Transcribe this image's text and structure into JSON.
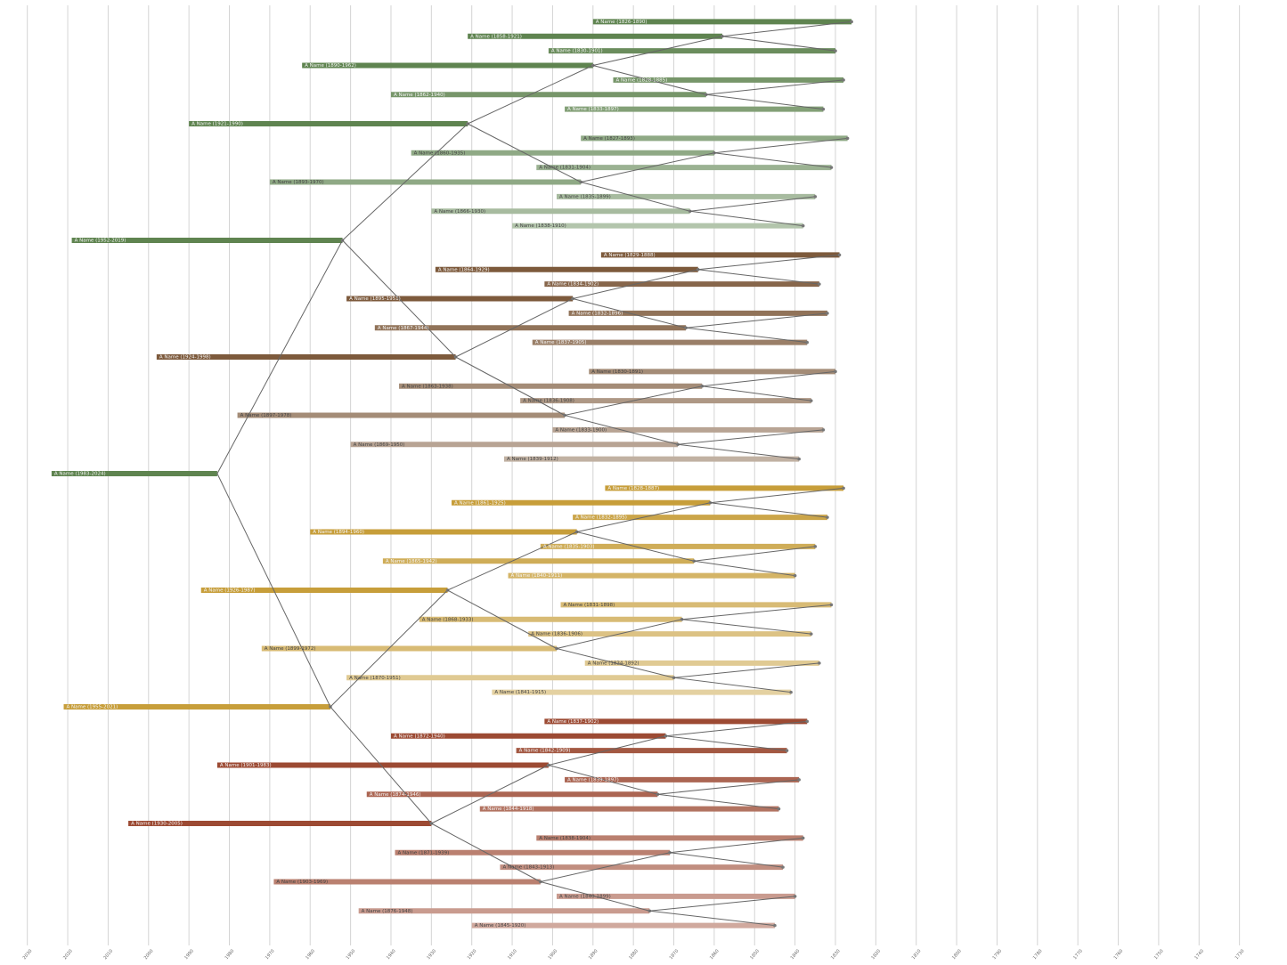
{
  "chart_data": {
    "type": "ancestry",
    "xlim": [
      2035,
      1720
    ],
    "xticks": [
      2030,
      2020,
      2010,
      2000,
      1990,
      1980,
      1970,
      1960,
      1950,
      1940,
      1930,
      1920,
      1910,
      1900,
      1890,
      1880,
      1870,
      1860,
      1850,
      1840,
      1830,
      1820,
      1810,
      1800,
      1790,
      1780,
      1770,
      1760,
      1750,
      1740,
      1730
    ],
    "grid": true,
    "branch_colors": [
      "#5f8450",
      "#7d5a3c",
      "#c79e3a",
      "#9c4a33"
    ],
    "people": [
      {
        "label": "A Name (1983-2024)",
        "birth": 1983,
        "death": 2024
      },
      {
        "label": "A Name (1952-2019)",
        "birth": 1952,
        "death": 2019
      },
      {
        "label": "A Name (1955-2021)",
        "birth": 1955,
        "death": 2021
      },
      {
        "label": "A Name (1921-1990)",
        "birth": 1921,
        "death": 1990
      },
      {
        "label": "A Name (1924-1998)",
        "birth": 1924,
        "death": 1998
      },
      {
        "label": "A Name (1926-1987)",
        "birth": 1926,
        "death": 1987
      },
      {
        "label": "A Name (1930-2005)",
        "birth": 1930,
        "death": 2005
      },
      {
        "label": "A Name (1890-1962)",
        "birth": 1890,
        "death": 1962
      },
      {
        "label": "A Name (1893-1970)",
        "birth": 1893,
        "death": 1970
      },
      {
        "label": "A Name (1895-1951)",
        "birth": 1895,
        "death": 1951
      },
      {
        "label": "A Name (1897-1978)",
        "birth": 1897,
        "death": 1978
      },
      {
        "label": "A Name (1894-1960)",
        "birth": 1894,
        "death": 1960
      },
      {
        "label": "A Name (1899-1972)",
        "birth": 1899,
        "death": 1972
      },
      {
        "label": "A Name (1901-1983)",
        "birth": 1901,
        "death": 1983
      },
      {
        "label": "A Name (1903-1969)",
        "birth": 1903,
        "death": 1969
      },
      {
        "label": "A Name (1858-1921)",
        "birth": 1858,
        "death": 1921
      },
      {
        "label": "A Name (1862-1940)",
        "birth": 1862,
        "death": 1940
      },
      {
        "label": "A Name (1860-1935)",
        "birth": 1860,
        "death": 1935
      },
      {
        "label": "A Name (1866-1930)",
        "birth": 1866,
        "death": 1930
      },
      {
        "label": "A Name (1864-1929)",
        "birth": 1864,
        "death": 1929
      },
      {
        "label": "A Name (1867-1944)",
        "birth": 1867,
        "death": 1944
      },
      {
        "label": "A Name (1863-1938)",
        "birth": 1863,
        "death": 1938
      },
      {
        "label": "A Name (1869-1950)",
        "birth": 1869,
        "death": 1950
      },
      {
        "label": "A Name (1861-1925)",
        "birth": 1861,
        "death": 1925
      },
      {
        "label": "A Name (1865-1942)",
        "birth": 1865,
        "death": 1942
      },
      {
        "label": "A Name (1868-1933)",
        "birth": 1868,
        "death": 1933
      },
      {
        "label": "A Name (1870-1951)",
        "birth": 1870,
        "death": 1951
      },
      {
        "label": "A Name (1872-1940)",
        "birth": 1872,
        "death": 1940
      },
      {
        "label": "A Name (1874-1946)",
        "birth": 1874,
        "death": 1946
      },
      {
        "label": "A Name (1871-1939)",
        "birth": 1871,
        "death": 1939
      },
      {
        "label": "A Name (1876-1948)",
        "birth": 1876,
        "death": 1948
      },
      {
        "label": "A Name (1826-1890)",
        "birth": 1826,
        "death": 1890
      },
      {
        "label": "A Name (1830-1901)",
        "birth": 1830,
        "death": 1901
      },
      {
        "label": "A Name (1828-1885)",
        "birth": 1828,
        "death": 1885
      },
      {
        "label": "A Name (1833-1897)",
        "birth": 1833,
        "death": 1897
      },
      {
        "label": "A Name (1827-1893)",
        "birth": 1827,
        "death": 1893
      },
      {
        "label": "A Name (1831-1904)",
        "birth": 1831,
        "death": 1904
      },
      {
        "label": "A Name (1835-1899)",
        "birth": 1835,
        "death": 1899
      },
      {
        "label": "A Name (1838-1910)",
        "birth": 1838,
        "death": 1910
      },
      {
        "label": "A Name (1829-1888)",
        "birth": 1829,
        "death": 1888
      },
      {
        "label": "A Name (1834-1902)",
        "birth": 1834,
        "death": 1902
      },
      {
        "label": "A Name (1832-1896)",
        "birth": 1832,
        "death": 1896
      },
      {
        "label": "A Name (1837-1905)",
        "birth": 1837,
        "death": 1905
      },
      {
        "label": "A Name (1830-1891)",
        "birth": 1830,
        "death": 1891
      },
      {
        "label": "A Name (1836-1908)",
        "birth": 1836,
        "death": 1908
      },
      {
        "label": "A Name (1833-1900)",
        "birth": 1833,
        "death": 1900
      },
      {
        "label": "A Name (1839-1912)",
        "birth": 1839,
        "death": 1912
      },
      {
        "label": "A Name (1828-1887)",
        "birth": 1828,
        "death": 1887
      },
      {
        "label": "A Name (1832-1895)",
        "birth": 1832,
        "death": 1895
      },
      {
        "label": "A Name (1835-1903)",
        "birth": 1835,
        "death": 1903
      },
      {
        "label": "A Name (1840-1911)",
        "birth": 1840,
        "death": 1911
      },
      {
        "label": "A Name (1831-1898)",
        "birth": 1831,
        "death": 1898
      },
      {
        "label": "A Name (1836-1906)",
        "birth": 1836,
        "death": 1906
      },
      {
        "label": "A Name (1834-1892)",
        "birth": 1834,
        "death": 1892
      },
      {
        "label": "A Name (1841-1915)",
        "birth": 1841,
        "death": 1915
      },
      {
        "label": "A Name (1837-1902)",
        "birth": 1837,
        "death": 1902
      },
      {
        "label": "A Name (1842-1909)",
        "birth": 1842,
        "death": 1909
      },
      {
        "label": "A Name (1839-1897)",
        "birth": 1839,
        "death": 1897
      },
      {
        "label": "A Name (1844-1918)",
        "birth": 1844,
        "death": 1918
      },
      {
        "label": "A Name (1838-1904)",
        "birth": 1838,
        "death": 1904
      },
      {
        "label": "A Name (1843-1913)",
        "birth": 1843,
        "death": 1913
      },
      {
        "label": "A Name (1840-1899)",
        "birth": 1840,
        "death": 1899
      },
      {
        "label": "A Name (1845-1920)",
        "birth": 1845,
        "death": 1920
      }
    ]
  }
}
